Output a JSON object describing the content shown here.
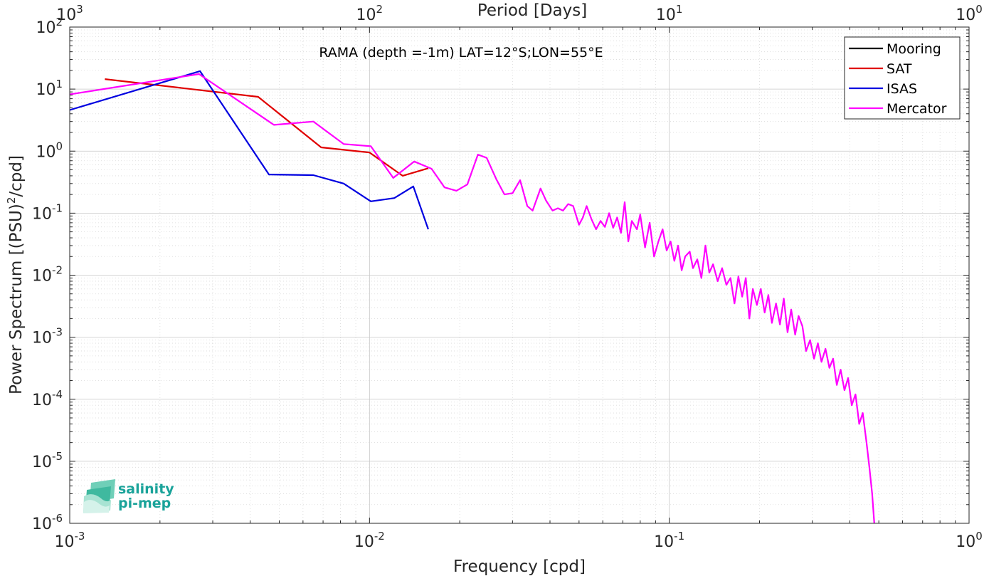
{
  "chart_data": {
    "type": "line",
    "title": "RAMA (depth =-1m) LAT=12°S;LON=55°E",
    "xlabel": "Frequency [cpd]",
    "ylabel": "Power Spectrum [(PSU)²/cpd]",
    "ylabel_parts": {
      "pre": "Power Spectrum [(PSU)",
      "sup": "2",
      "post": "/cpd]"
    },
    "top_xlabel": "Period [Days]",
    "xscale": "log",
    "yscale": "log",
    "xlim": [
      0.001,
      1
    ],
    "ylim": [
      1e-06,
      100
    ],
    "grid": true,
    "legend_position": "top-right",
    "x_ticks": [
      {
        "value": 0.001,
        "base": "10",
        "exp": "-3"
      },
      {
        "value": 0.01,
        "base": "10",
        "exp": "-2"
      },
      {
        "value": 0.1,
        "base": "10",
        "exp": "-1"
      },
      {
        "value": 1,
        "base": "10",
        "exp": "0"
      }
    ],
    "top_ticks": [
      {
        "value": 0.001,
        "base": "10",
        "exp": "3"
      },
      {
        "value": 0.01,
        "base": "10",
        "exp": "2"
      },
      {
        "value": 0.1,
        "base": "10",
        "exp": "1"
      },
      {
        "value": 1,
        "base": "10",
        "exp": "0"
      }
    ],
    "y_ticks": [
      {
        "value": 100,
        "base": "10",
        "exp": "2"
      },
      {
        "value": 10,
        "base": "10",
        "exp": "1"
      },
      {
        "value": 1,
        "base": "10",
        "exp": "0"
      },
      {
        "value": 0.1,
        "base": "10",
        "exp": "-1"
      },
      {
        "value": 0.01,
        "base": "10",
        "exp": "-2"
      },
      {
        "value": 0.001,
        "base": "10",
        "exp": "-3"
      },
      {
        "value": 0.0001,
        "base": "10",
        "exp": "-4"
      },
      {
        "value": 1e-05,
        "base": "10",
        "exp": "-5"
      },
      {
        "value": 1e-06,
        "base": "10",
        "exp": "-6"
      }
    ],
    "series": [
      {
        "name": "Mooring",
        "color": "#000000",
        "points": []
      },
      {
        "name": "SAT",
        "color": "#e00000",
        "points": [
          [
            0.00131,
            14.5
          ],
          [
            0.00425,
            7.5
          ],
          [
            0.0069,
            1.15
          ],
          [
            0.01,
            0.95
          ],
          [
            0.0129,
            0.4
          ],
          [
            0.0157,
            0.53
          ]
        ]
      },
      {
        "name": "ISAS",
        "color": "#0000e0",
        "points": [
          [
            0.001,
            4.6
          ],
          [
            0.00272,
            19.5
          ],
          [
            0.00462,
            0.42
          ],
          [
            0.0065,
            0.41
          ],
          [
            0.0082,
            0.3
          ],
          [
            0.0101,
            0.155
          ],
          [
            0.0121,
            0.175
          ],
          [
            0.014,
            0.27
          ],
          [
            0.0157,
            0.055
          ]
        ]
      },
      {
        "name": "Mercator",
        "color": "#ff00ff",
        "points": [
          [
            0.001,
            8.2
          ],
          [
            0.0027,
            17.5
          ],
          [
            0.0048,
            2.65
          ],
          [
            0.0065,
            3.0
          ],
          [
            0.0082,
            1.3
          ],
          [
            0.0101,
            1.2
          ],
          [
            0.012,
            0.37
          ],
          [
            0.0141,
            0.68
          ],
          [
            0.0161,
            0.52
          ],
          [
            0.0178,
            0.26
          ],
          [
            0.0195,
            0.23
          ],
          [
            0.0212,
            0.29
          ],
          [
            0.023,
            0.88
          ],
          [
            0.0246,
            0.78
          ],
          [
            0.0265,
            0.35
          ],
          [
            0.0282,
            0.2
          ],
          [
            0.03,
            0.21
          ],
          [
            0.0318,
            0.34
          ],
          [
            0.0336,
            0.13
          ],
          [
            0.035,
            0.11
          ],
          [
            0.0372,
            0.25
          ],
          [
            0.0388,
            0.16
          ],
          [
            0.0408,
            0.11
          ],
          [
            0.0425,
            0.12
          ],
          [
            0.0442,
            0.11
          ],
          [
            0.046,
            0.14
          ],
          [
            0.0478,
            0.13
          ],
          [
            0.05,
            0.065
          ],
          [
            0.0515,
            0.085
          ],
          [
            0.053,
            0.13
          ],
          [
            0.055,
            0.08
          ],
          [
            0.057,
            0.055
          ],
          [
            0.059,
            0.075
          ],
          [
            0.061,
            0.06
          ],
          [
            0.063,
            0.1
          ],
          [
            0.065,
            0.058
          ],
          [
            0.067,
            0.085
          ],
          [
            0.069,
            0.048
          ],
          [
            0.071,
            0.15
          ],
          [
            0.073,
            0.035
          ],
          [
            0.075,
            0.075
          ],
          [
            0.078,
            0.055
          ],
          [
            0.08,
            0.095
          ],
          [
            0.083,
            0.028
          ],
          [
            0.086,
            0.07
          ],
          [
            0.089,
            0.02
          ],
          [
            0.092,
            0.035
          ],
          [
            0.095,
            0.055
          ],
          [
            0.098,
            0.025
          ],
          [
            0.101,
            0.035
          ],
          [
            0.104,
            0.017
          ],
          [
            0.107,
            0.03
          ],
          [
            0.11,
            0.012
          ],
          [
            0.113,
            0.02
          ],
          [
            0.117,
            0.024
          ],
          [
            0.12,
            0.013
          ],
          [
            0.124,
            0.018
          ],
          [
            0.128,
            0.009
          ],
          [
            0.132,
            0.03
          ],
          [
            0.136,
            0.011
          ],
          [
            0.14,
            0.015
          ],
          [
            0.145,
            0.008
          ],
          [
            0.15,
            0.013
          ],
          [
            0.155,
            0.007
          ],
          [
            0.16,
            0.009
          ],
          [
            0.165,
            0.0035
          ],
          [
            0.17,
            0.0095
          ],
          [
            0.175,
            0.0045
          ],
          [
            0.18,
            0.009
          ],
          [
            0.185,
            0.002
          ],
          [
            0.19,
            0.006
          ],
          [
            0.196,
            0.0033
          ],
          [
            0.202,
            0.006
          ],
          [
            0.208,
            0.0025
          ],
          [
            0.214,
            0.0048
          ],
          [
            0.22,
            0.0017
          ],
          [
            0.227,
            0.0035
          ],
          [
            0.234,
            0.0016
          ],
          [
            0.241,
            0.0042
          ],
          [
            0.248,
            0.0012
          ],
          [
            0.255,
            0.0028
          ],
          [
            0.263,
            0.0011
          ],
          [
            0.27,
            0.0022
          ],
          [
            0.278,
            0.0015
          ],
          [
            0.286,
            0.0006
          ],
          [
            0.295,
            0.0009
          ],
          [
            0.304,
            0.00045
          ],
          [
            0.313,
            0.0008
          ],
          [
            0.322,
            0.0004
          ],
          [
            0.332,
            0.00065
          ],
          [
            0.342,
            0.00032
          ],
          [
            0.352,
            0.00045
          ],
          [
            0.362,
            0.00017
          ],
          [
            0.373,
            0.0003
          ],
          [
            0.384,
            0.00014
          ],
          [
            0.395,
            0.00022
          ],
          [
            0.406,
            8e-05
          ],
          [
            0.418,
            0.00012
          ],
          [
            0.43,
            4e-05
          ],
          [
            0.442,
            6e-05
          ],
          [
            0.455,
            2e-05
          ],
          [
            0.465,
            8e-06
          ],
          [
            0.475,
            3e-06
          ],
          [
            0.483,
            1e-06
          ]
        ]
      }
    ]
  },
  "logo": {
    "line1": "salinity",
    "line2": "pi-mep"
  }
}
